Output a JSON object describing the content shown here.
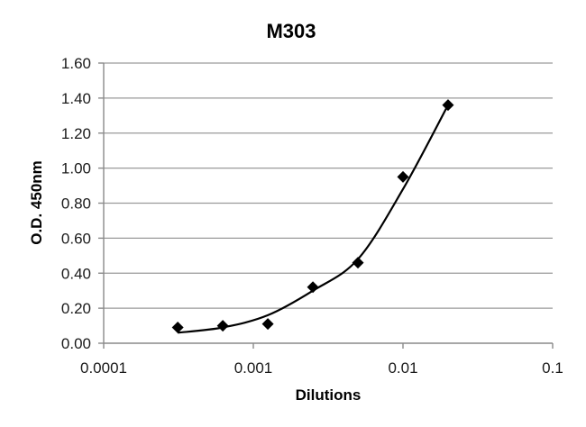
{
  "chart_data": {
    "type": "scatter",
    "title": "M303",
    "xlabel": "Dilutions",
    "ylabel": "O.D. 450nm",
    "xscale": "log",
    "xlim": [
      0.0001,
      0.1
    ],
    "ylim": [
      0,
      1.6
    ],
    "x_ticks": [
      0.0001,
      0.001,
      0.01,
      0.1
    ],
    "x_tick_labels": [
      "0.0001",
      "0.001",
      "0.01",
      "0.1"
    ],
    "y_ticks": [
      0,
      0.2,
      0.4,
      0.6,
      0.8,
      1.0,
      1.2,
      1.4,
      1.6
    ],
    "y_tick_labels": [
      "0.00",
      "0.20",
      "0.40",
      "0.60",
      "0.80",
      "1.00",
      "1.20",
      "1.40",
      "1.60"
    ],
    "grid": {
      "horizontal": true,
      "vertical": false
    },
    "legend": null,
    "series": [
      {
        "name": "M303",
        "marker": "diamond",
        "color": "#000000",
        "x": [
          0.0003125,
          0.000625,
          0.00125,
          0.0025,
          0.005,
          0.01,
          0.02
        ],
        "y": [
          0.09,
          0.1,
          0.11,
          0.32,
          0.46,
          0.95,
          1.36
        ]
      }
    ],
    "trendline": {
      "type": "smooth fit curve",
      "color": "#000000",
      "x": [
        0.0003125,
        0.000625,
        0.00125,
        0.0025,
        0.005,
        0.01,
        0.02
      ],
      "y": [
        0.06,
        0.09,
        0.16,
        0.3,
        0.48,
        0.88,
        1.36
      ]
    }
  }
}
